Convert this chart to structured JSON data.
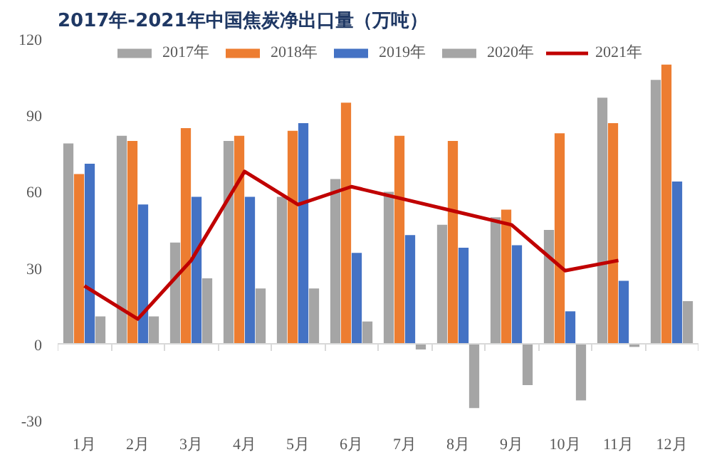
{
  "chart_data": {
    "type": "bar",
    "title": "2017年-2021年中国焦炭净出口量（万吨）",
    "categories": [
      "1月",
      "2月",
      "3月",
      "4月",
      "5月",
      "6月",
      "7月",
      "8月",
      "9月",
      "10月",
      "11月",
      "12月"
    ],
    "series": [
      {
        "name": "2017年",
        "color": "#a5a5a5",
        "values": [
          79,
          82,
          40,
          80,
          58,
          65,
          60,
          47,
          50,
          45,
          97,
          104
        ]
      },
      {
        "name": "2018年",
        "color": "#ed7d31",
        "values": [
          67,
          80,
          85,
          82,
          84,
          95,
          82,
          80,
          53,
          83,
          87,
          110
        ]
      },
      {
        "name": "2019年",
        "color": "#4472c4",
        "values": [
          71,
          55,
          58,
          58,
          87,
          36,
          43,
          38,
          39,
          13,
          25,
          64
        ]
      },
      {
        "name": "2020年",
        "color": "#a5a5a5",
        "values": [
          11,
          11,
          26,
          22,
          22,
          9,
          -2,
          -25,
          -16,
          -22,
          -1,
          17
        ]
      },
      {
        "name": "2021年",
        "color": "#c00000",
        "type": "line",
        "values": [
          23,
          10,
          33,
          68,
          55,
          62,
          57,
          52,
          47,
          29,
          33,
          null
        ]
      }
    ],
    "ylim": [
      -30,
      120
    ],
    "yticks": [
      -30,
      0,
      30,
      60,
      90,
      120
    ],
    "legend": "top",
    "marker": "none",
    "line_style": "solid"
  }
}
